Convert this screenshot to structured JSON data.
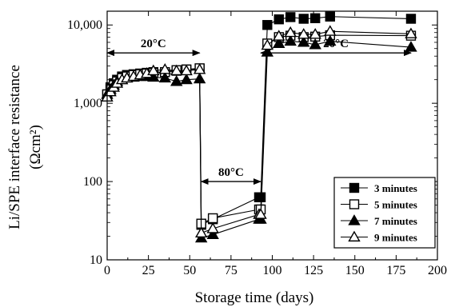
{
  "chart_data": {
    "type": "line",
    "xlabel": "Storage time (days)",
    "ylabel_line1": "Li/SPE interface resistance",
    "ylabel_line2": "(Ωcm²)",
    "xlim": [
      0,
      200
    ],
    "ylim": [
      10,
      15000
    ],
    "yscale": "log",
    "grid": false,
    "legend_position": "bottom-right",
    "x_ticks": [
      "0",
      "25",
      "50",
      "75",
      "100",
      "125",
      "150",
      "175",
      "200"
    ],
    "x_tick_values": [
      0,
      25,
      50,
      75,
      100,
      125,
      150,
      175,
      200
    ],
    "y_ticks": [
      "10",
      "100",
      "1,000",
      "10,000"
    ],
    "y_tick_values": [
      10,
      100,
      1000,
      10000
    ],
    "series": [
      {
        "name": "3 minutes",
        "marker": "square-filled",
        "x": [
          0,
          2,
          4,
          6,
          9,
          12,
          16,
          20,
          24,
          28,
          35,
          42,
          48,
          56,
          57,
          64,
          92,
          93,
          97,
          104,
          111,
          119,
          126,
          135,
          184
        ],
        "y": [
          1300,
          1600,
          1800,
          2000,
          2200,
          2300,
          2350,
          2400,
          2450,
          2500,
          2500,
          2600,
          2700,
          2750,
          28,
          33,
          63,
          63,
          10000,
          11800,
          12600,
          12000,
          12200,
          12800,
          12000
        ]
      },
      {
        "name": "5 minutes",
        "marker": "square-open",
        "x": [
          0,
          2,
          4,
          6,
          9,
          12,
          16,
          20,
          24,
          28,
          35,
          42,
          48,
          56,
          57,
          64,
          92,
          93,
          97,
          104,
          111,
          119,
          126,
          135,
          184
        ],
        "y": [
          1300,
          1500,
          1700,
          1900,
          2100,
          2200,
          2300,
          2350,
          2400,
          2450,
          2500,
          2650,
          2700,
          2800,
          29,
          34,
          44,
          44,
          5800,
          7000,
          7300,
          7000,
          7100,
          7400,
          7300
        ]
      },
      {
        "name": "7 minutes",
        "marker": "triangle-filled",
        "x": [
          0,
          2,
          4,
          6,
          9,
          12,
          16,
          20,
          24,
          28,
          35,
          42,
          48,
          56,
          57,
          64,
          92,
          93,
          97,
          104,
          111,
          119,
          126,
          135,
          184
        ],
        "y": [
          1300,
          1500,
          1700,
          1900,
          2000,
          2100,
          2150,
          2200,
          2200,
          2150,
          2100,
          1900,
          2000,
          2050,
          19,
          21,
          33,
          33,
          4500,
          5800,
          6200,
          6000,
          5600,
          6200,
          5200
        ]
      },
      {
        "name": "9 minutes",
        "marker": "triangle-open",
        "x": [
          0,
          2,
          4,
          6,
          9,
          12,
          16,
          20,
          24,
          28,
          35,
          42,
          48,
          56,
          57,
          64,
          92,
          93,
          97,
          104,
          111,
          119,
          126,
          135,
          184
        ],
        "y": [
          1200,
          1400,
          1600,
          1800,
          2000,
          2100,
          2200,
          2300,
          2400,
          2600,
          2700,
          2600,
          2600,
          2700,
          22,
          25,
          38,
          38,
          5500,
          7200,
          8000,
          7600,
          7600,
          8300,
          7700
        ]
      }
    ],
    "annotations": [
      {
        "text": "20°C",
        "x_from": 0,
        "x_to": 56,
        "y": 4400
      },
      {
        "text": "80°C",
        "x_from": 57,
        "x_to": 93,
        "y": 100
      },
      {
        "text": "20°C",
        "x_from": 93,
        "x_to": 184,
        "y": 4400
      }
    ]
  }
}
